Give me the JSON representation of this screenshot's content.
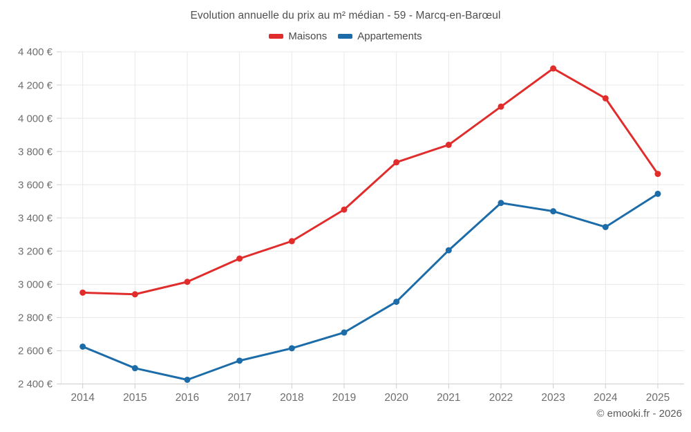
{
  "header": {
    "title": "Evolution annuelle du prix au m² médian - 59 - Marcq-en-Barœul"
  },
  "footer": {
    "credit": "© emooki.fr - 2026"
  },
  "colors": {
    "maisons": "#e12c2c",
    "appartements": "#1b6ca8",
    "grid": "#e8e8e8",
    "axis": "#cccccc",
    "tick_text": "#6e6e6e",
    "title_text": "#4f4f4f"
  },
  "chart_data": {
    "type": "line",
    "title": "Evolution annuelle du prix au m² médian - 59 - Marcq-en-Barœul",
    "categories": [
      "2014",
      "2015",
      "2016",
      "2017",
      "2018",
      "2019",
      "2020",
      "2021",
      "2022",
      "2023",
      "2024",
      "2025"
    ],
    "series": [
      {
        "name": "Maisons",
        "color": "#e12c2c",
        "values": [
          2950,
          2940,
          3015,
          3155,
          3260,
          3450,
          3735,
          3840,
          4070,
          4300,
          4120,
          3665
        ]
      },
      {
        "name": "Appartements",
        "color": "#1b6ca8",
        "values": [
          2625,
          2495,
          2425,
          2540,
          2615,
          2710,
          2895,
          3205,
          3490,
          3440,
          3345,
          3545
        ]
      }
    ],
    "xlabel": "",
    "ylabel": "",
    "ylim": [
      2400,
      4400
    ],
    "y_tick_step": 200,
    "y_ticks": [
      2400,
      2600,
      2800,
      3000,
      3200,
      3400,
      3600,
      3800,
      4000,
      4200,
      4400
    ],
    "y_tick_labels": [
      "2 400 €",
      "2 600 €",
      "2 800 €",
      "3 000 €",
      "3 200 €",
      "3 400 €",
      "3 600 €",
      "3 800 €",
      "4 000 €",
      "4 200 €",
      "4 400 €"
    ],
    "grid": true,
    "legend_position": "top",
    "annotation": "© emooki.fr - 2026"
  }
}
